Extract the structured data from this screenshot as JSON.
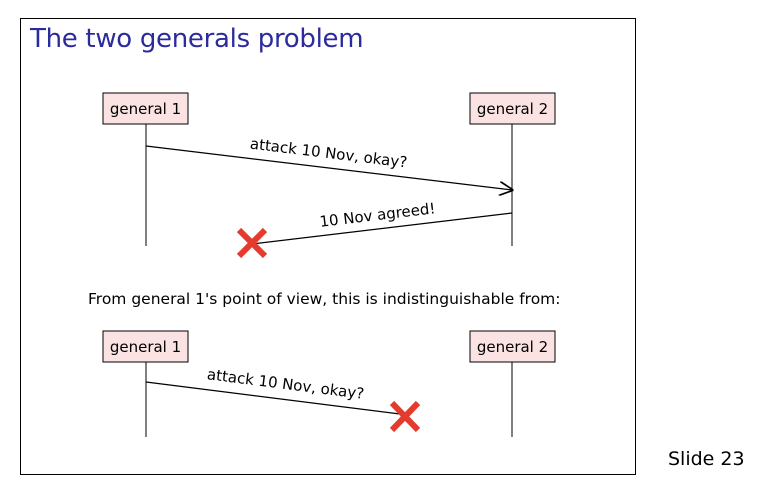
{
  "slide": {
    "title": "The two generals problem",
    "number_label": "Slide 23",
    "caption": "From general 1's point of view, this is indistinguishable from:"
  },
  "diagram_top": {
    "general1": "general 1",
    "general2": "general 2",
    "msg1": "attack 10 Nov, okay?",
    "msg2": "10 Nov agreed!"
  },
  "diagram_bottom": {
    "general1": "general 1",
    "general2": "general 2",
    "msg1": "attack 10 Nov, okay?"
  },
  "colors": {
    "title": "#2b2b9e",
    "box_fill": "#fbe3e3",
    "cross": "#e53b2f"
  },
  "icons": {
    "lost_message": "x-mark-icon"
  }
}
